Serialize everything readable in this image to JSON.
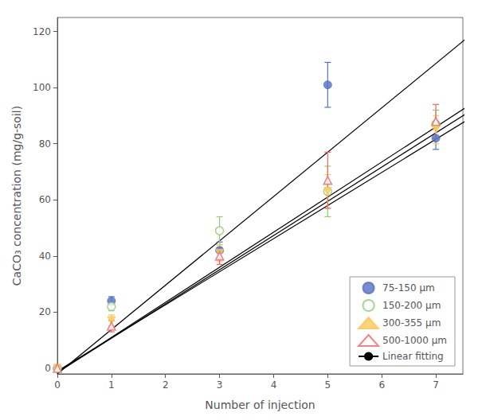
{
  "chart_data": {
    "type": "scatter",
    "xlabel": "Number of injection",
    "ylabel": "CaCO₃ concentration (mg/g-soil)",
    "xlim": [
      0,
      7.5
    ],
    "ylim": [
      -2,
      125
    ],
    "xticks": [
      0,
      1,
      2,
      3,
      4,
      5,
      6,
      7
    ],
    "yticks": [
      0,
      20,
      40,
      60,
      80,
      100,
      120
    ],
    "grid": false,
    "legend": "lower right",
    "series": [
      {
        "name": "75-150 μm",
        "type": "scatter",
        "marker": "circle",
        "color": "#5470c6",
        "x": [
          0,
          1,
          3,
          5,
          7
        ],
        "values": [
          0,
          24,
          42,
          101,
          82
        ],
        "yerr": [
          0,
          1.5,
          3,
          8,
          4
        ]
      },
      {
        "name": "150-200 μm",
        "type": "scatter",
        "marker": "open circle",
        "color": "#91cc75",
        "x": [
          0,
          1,
          3,
          5,
          7
        ],
        "values": [
          0,
          22,
          49,
          63,
          87
        ],
        "yerr": [
          0,
          1.5,
          5,
          9,
          5
        ]
      },
      {
        "name": "300-355 μm",
        "type": "scatter",
        "marker": "triangle-down",
        "color": "#fac858",
        "x": [
          0,
          1,
          3,
          5,
          7
        ],
        "values": [
          0,
          17,
          41,
          63,
          85
        ],
        "yerr": [
          0,
          2,
          3,
          6,
          5
        ]
      },
      {
        "name": "500-1000 μm",
        "type": "scatter",
        "marker": "open triangle",
        "color": "#ee6666",
        "x": [
          0,
          1,
          3,
          5,
          7
        ],
        "values": [
          0,
          15,
          40,
          67,
          88
        ],
        "yerr": [
          0,
          2,
          3,
          10,
          6
        ]
      },
      {
        "name": "Linear fitting",
        "type": "line",
        "color": "#000000",
        "x": [
          0,
          7.8
        ],
        "values": [
          -2.0,
          121.24
        ]
      },
      {
        "name": "Linear fitting",
        "type": "line",
        "color": "#000000",
        "x": [
          0,
          7.8
        ],
        "values": [
          -1.5,
          96.0
        ]
      },
      {
        "name": "Linear fitting",
        "type": "line",
        "color": "#000000",
        "x": [
          0,
          7.8
        ],
        "values": [
          -1.0,
          91.04
        ]
      },
      {
        "name": "Linear fitting",
        "type": "line",
        "color": "#000000",
        "x": [
          0,
          7.8
        ],
        "values": [
          -1.5,
          93.66
        ]
      }
    ]
  }
}
